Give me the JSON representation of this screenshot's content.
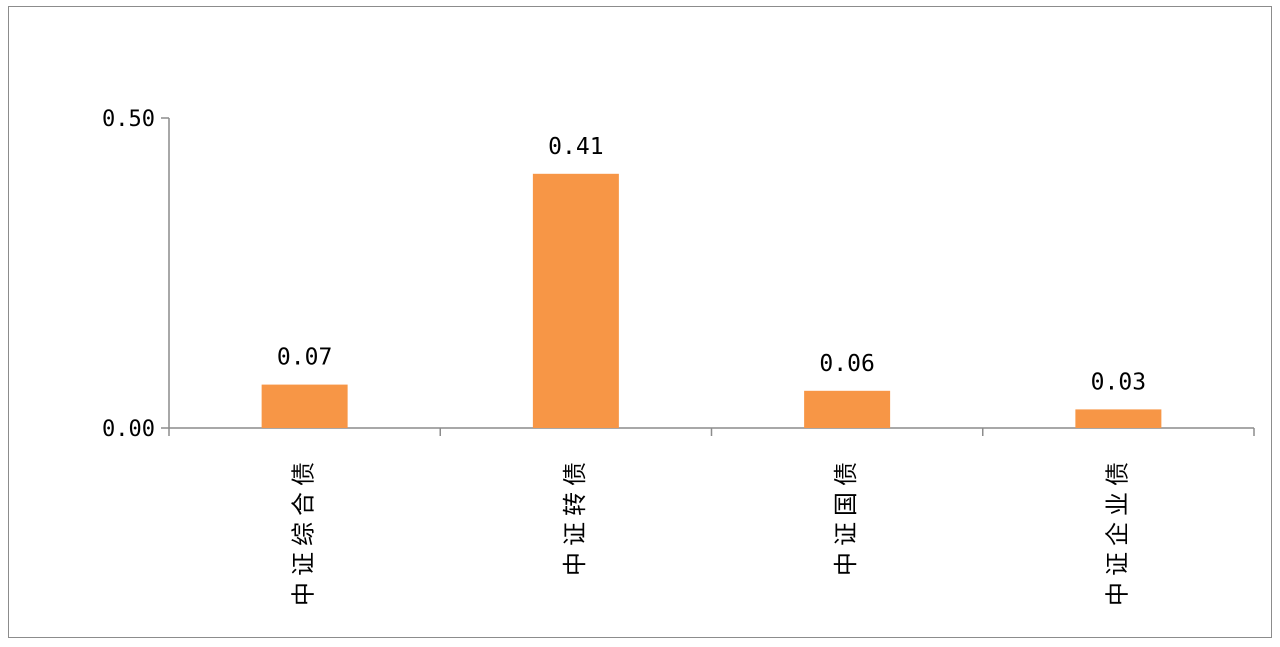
{
  "chart_data": {
    "type": "bar",
    "title": "",
    "xlabel": "",
    "ylabel": "",
    "categories": [
      "中证综合债",
      "中证转债",
      "中证国债",
      "中证企业债"
    ],
    "values": [
      0.07,
      0.41,
      0.06,
      0.03
    ],
    "data_labels": [
      "0.07",
      "0.41",
      "0.06",
      "0.03"
    ],
    "yticks": [
      0.0,
      0.5
    ],
    "ytick_labels": [
      "0.00",
      "0.50"
    ],
    "ylim": [
      0,
      0.5
    ],
    "grid": false,
    "legend": "none",
    "bar_color": "#f79646",
    "axis_color": "#8c8c8c"
  }
}
